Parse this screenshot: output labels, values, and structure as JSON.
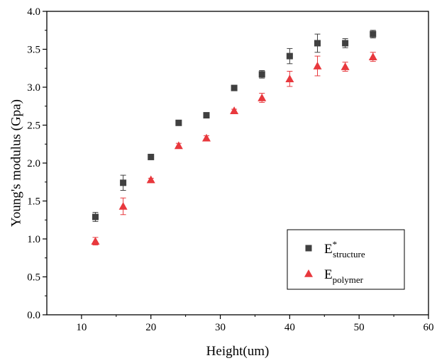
{
  "chart_data": {
    "type": "scatter",
    "title": "",
    "xlabel": "Height(um)",
    "ylabel": "Young's modulus (Gpa)",
    "xlim": [
      5,
      60
    ],
    "ylim": [
      0.0,
      4.0
    ],
    "xticks": [
      "10",
      "20",
      "30",
      "40",
      "50",
      "60"
    ],
    "yticks": [
      "0.0",
      "0.5",
      "1.0",
      "1.5",
      "2.0",
      "2.5",
      "3.0",
      "3.5",
      "4.0"
    ],
    "grid": false,
    "legend_position": "bottom-right",
    "series": [
      {
        "name": "E*structure",
        "legend_base": "E",
        "legend_sup": "*",
        "legend_sub": "structure",
        "marker": "square",
        "color": "#404040",
        "x": [
          12,
          16,
          20,
          24,
          28,
          32,
          36,
          40,
          44,
          48,
          52
        ],
        "y": [
          1.29,
          1.74,
          2.08,
          2.53,
          2.63,
          2.99,
          3.17,
          3.41,
          3.58,
          3.58,
          3.7
        ],
        "err": [
          0.06,
          0.1,
          0.02,
          0.03,
          0.02,
          0.02,
          0.05,
          0.1,
          0.12,
          0.06,
          0.05
        ]
      },
      {
        "name": "Epolymer",
        "legend_base": "E",
        "legend_sup": "",
        "legend_sub": "polymer",
        "marker": "triangle",
        "color": "#e8383d",
        "x": [
          12,
          16,
          20,
          24,
          28,
          32,
          36,
          40,
          44,
          48,
          52
        ],
        "y": [
          0.97,
          1.43,
          1.78,
          2.23,
          2.33,
          2.69,
          2.86,
          3.11,
          3.28,
          3.27,
          3.4
        ],
        "err": [
          0.05,
          0.11,
          0.02,
          0.03,
          0.03,
          0.02,
          0.06,
          0.1,
          0.13,
          0.06,
          0.06
        ]
      }
    ]
  }
}
